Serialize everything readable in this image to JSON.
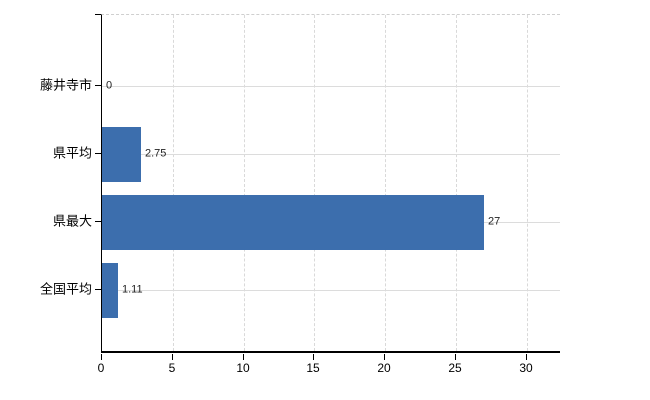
{
  "chart_data": {
    "type": "bar",
    "orientation": "horizontal",
    "title": "",
    "xlabel": "",
    "ylabel": "",
    "categories": [
      "藤井寺市",
      "県平均",
      "県最大",
      "全国平均"
    ],
    "values": [
      0,
      2.75,
      27,
      1.11
    ],
    "value_labels": [
      "0",
      "2.75",
      "27",
      "1.11"
    ],
    "x_ticks": [
      0,
      5,
      10,
      15,
      20,
      25,
      30
    ],
    "x_tick_labels": [
      "0",
      "5",
      "10",
      "15",
      "20",
      "25",
      "30"
    ],
    "xlim": [
      0,
      32.4
    ],
    "grid": true,
    "legend": false,
    "bar_color": "#3c6ead",
    "axis_color": "#000000",
    "hgrid_color": "#dcdcdc",
    "vgrid_color": "#d9d9d9"
  }
}
